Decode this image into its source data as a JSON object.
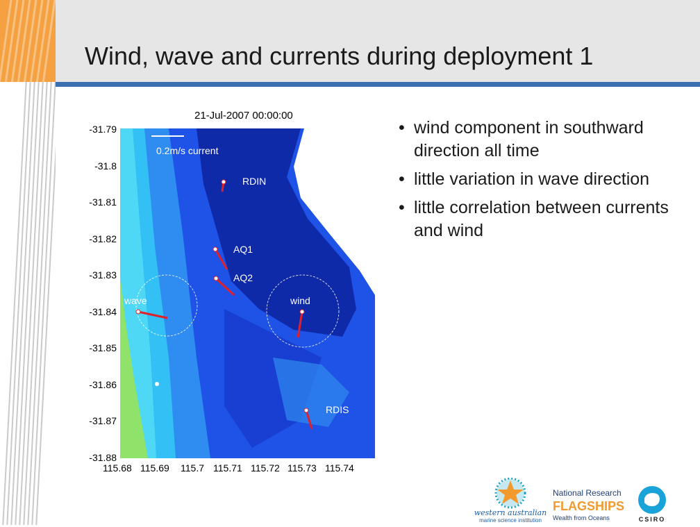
{
  "slide": {
    "title": "Wind, wave and currents during deployment 1",
    "bullets": [
      "wind component in southward direction all time",
      "little variation in wave direction",
      "little correlation between currents and wind"
    ],
    "bullet_symbol": "•"
  },
  "figure": {
    "title": "21-Jul-2007 00:00:00",
    "y_ticks": [
      "-31.79",
      "-31.8",
      "-31.81",
      "-31.82",
      "-31.83",
      "-31.84",
      "-31.85",
      "-31.86",
      "-31.87",
      "-31.88"
    ],
    "x_ticks": [
      "115.68",
      "115.69",
      "115.7",
      "115.71",
      "115.72",
      "115.73",
      "115.74"
    ],
    "scale_label": "0.2m/s current",
    "stations": [
      "RDIN",
      "AQ1",
      "AQ2",
      "wave",
      "wind",
      "RDIS"
    ]
  },
  "logos": {
    "waims_line1": "western australian",
    "waims_line2": "marine science institution",
    "flagships_line1": "National Research",
    "flagships_line2": "FLAGSHIPS",
    "flagships_line3": "Wealth from Oceans",
    "csiro": "CSIRO"
  },
  "colors": {
    "accent_orange": "#f5a142",
    "rule_blue": "#3a6fb0",
    "map_deep": "#0f2aa8",
    "map_mid": "#1f52e6",
    "map_light": "#2f8cf0",
    "map_cyan": "#33c0f4",
    "map_land": "#8fe36b",
    "vector": "#e0202a"
  }
}
